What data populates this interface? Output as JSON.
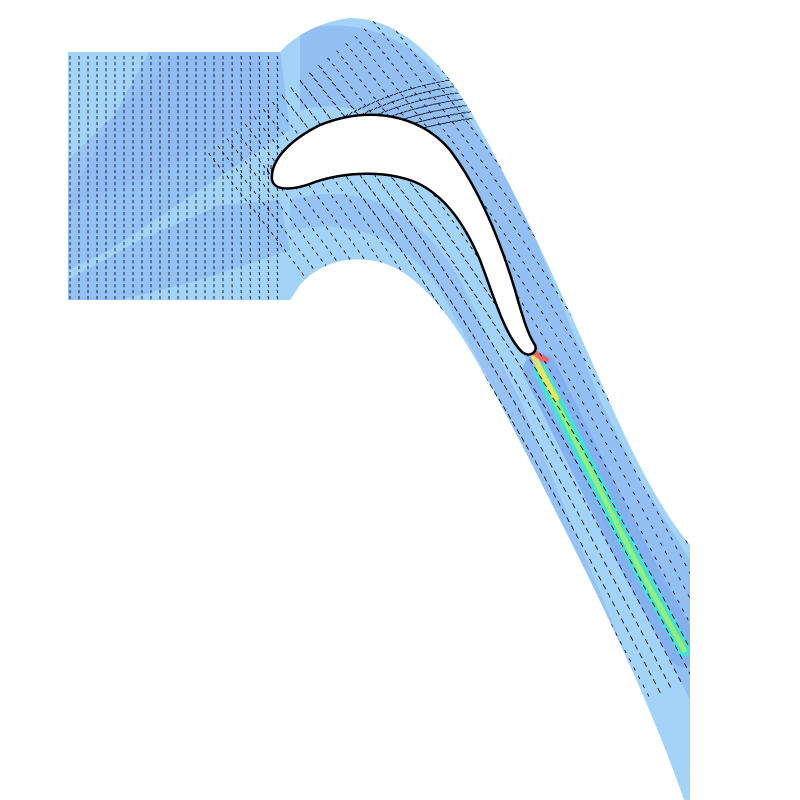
{
  "figure": {
    "kind": "turbine blade cascade flow field visualization",
    "colors": {
      "background": "#ffffff",
      "field_light": "#a9dcf7",
      "field_mid": "#93c1f4",
      "field_dark": "#84aef0",
      "wake_cyan": "#3fe6d6",
      "wake_green": "#9df26a",
      "wake_yellow": "#f2e85a",
      "trailing_red": "#f25a5a",
      "vectors": "#000000"
    },
    "icons": [
      "velocity-vector-arrows",
      "blade-airfoil-cutout"
    ]
  }
}
